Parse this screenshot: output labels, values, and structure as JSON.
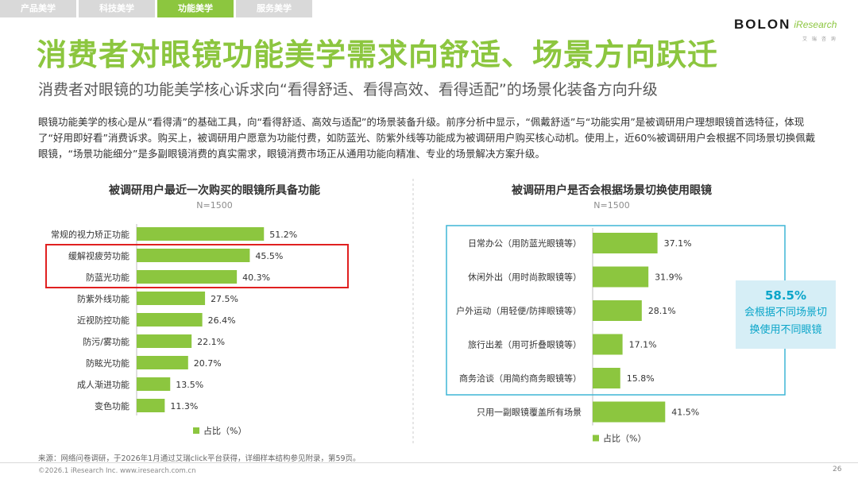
{
  "tabs": [
    {
      "label": "产品美学",
      "active": false
    },
    {
      "label": "科技美学",
      "active": false
    },
    {
      "label": "功能美学",
      "active": true
    },
    {
      "label": "服务美学",
      "active": false
    }
  ],
  "logo": {
    "brand": "BOLON",
    "partner": "iResearch",
    "partner_sub": "艾 瑞 咨 询"
  },
  "title": "消费者对眼镜功能美学需求向舒适、场景方向跃迁",
  "subtitle": "消费者对眼镜的功能美学核心诉求向“看得舒适、看得高效、看得适配”的场景化装备方向升级",
  "paragraph": "眼镜功能美学的核心是从“看得清”的基础工具，向“看得舒适、高效与适配”的场景装备升级。前序分析中显示，“佩戴舒适”与“功能实用”是被调研用户理想眼镜首选特征，体现了“好用即好看”消费诉求。购买上，被调研用户愿意为功能付费，如防蓝光、防紫外线等功能成为被调研用户购买核心动机。使用上，近60%被调研用户会根据不同场景切换佩戴眼镜，“场景功能细分”是多副眼镜消费的真实需求，眼镜消费市场正从通用功能向精准、专业的场景解决方案升级。",
  "chart_data": [
    {
      "type": "bar",
      "orientation": "horizontal",
      "title": "被调研用户最近一次购买的眼镜所具备功能",
      "sample": "N=1500",
      "categories": [
        "常规的视力矫正功能",
        "缓解视疲劳功能",
        "防蓝光功能",
        "防紫外线功能",
        "近视防控功能",
        "防污/雾功能",
        "防眩光功能",
        "成人渐进功能",
        "变色功能"
      ],
      "values": [
        51.2,
        45.5,
        40.3,
        27.5,
        26.4,
        22.1,
        20.7,
        13.5,
        11.3
      ],
      "value_labels": [
        "51.2%",
        "45.5%",
        "40.3%",
        "27.5%",
        "26.4%",
        "22.1%",
        "20.7%",
        "13.5%",
        "11.3%"
      ],
      "highlighted": [
        "缓解视疲劳功能",
        "防蓝光功能"
      ],
      "legend": "占比（%）",
      "bar_color": "#8cc63f",
      "highlight_color": "#e02020"
    },
    {
      "type": "bar",
      "orientation": "horizontal",
      "title": "被调研用户是否会根据场景切换使用眼镜",
      "sample": "N=1500",
      "categories": [
        "日常办公（用防蓝光眼镜等）",
        "休闲外出（用时尚款眼镜等）",
        "户外运动（用轻便/防摔眼镜等）",
        "旅行出差（用可折叠眼镜等）",
        "商务洽谈（用简约商务眼镜等）",
        "只用一副眼镜覆盖所有场景"
      ],
      "values": [
        37.1,
        31.9,
        28.1,
        17.1,
        15.8,
        41.5
      ],
      "value_labels": [
        "37.1%",
        "31.9%",
        "28.1%",
        "17.1%",
        "15.8%",
        "41.5%"
      ],
      "legend": "占比（%）",
      "bar_color": "#8cc63f",
      "box_color": "#3fb6d6",
      "callout": {
        "value": "58.5%",
        "line1": "会根据不同场景切",
        "line2": "换使用不同眼镜"
      }
    }
  ],
  "footer": {
    "source": "来源：网络问卷调研，于2026年1月通过艾瑞click平台获得，详细样本结构参见附录，第59页。",
    "copyright": "©2026.1 iResearch Inc.                              www.iresearch.com.cn",
    "page": "26"
  }
}
